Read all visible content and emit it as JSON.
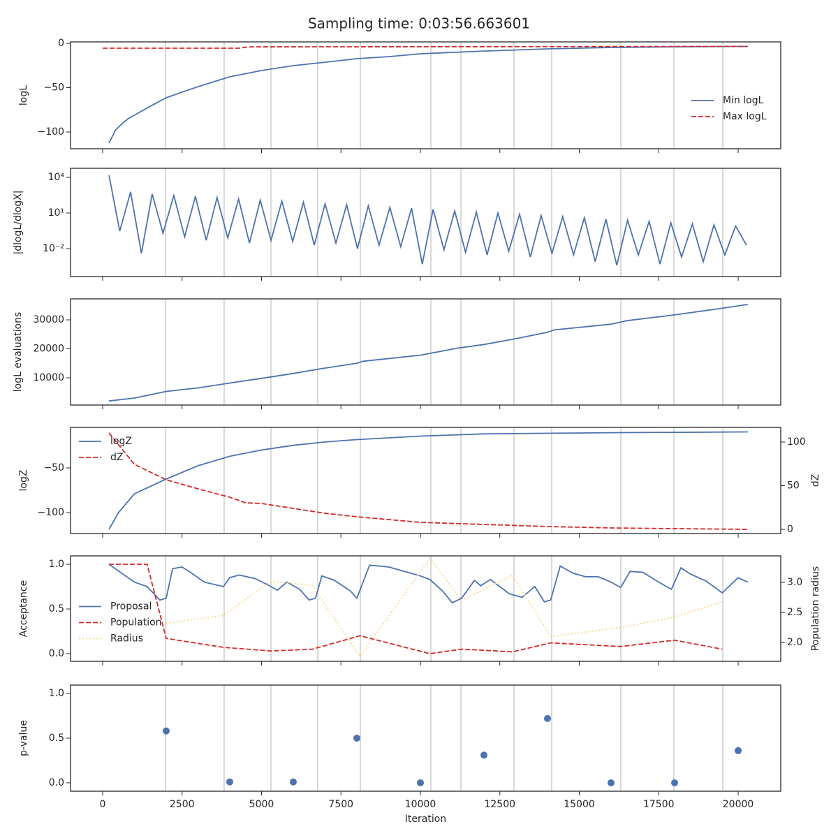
{
  "title": "Sampling time: 0:03:56.663601",
  "x_axis": {
    "label": "Iteration",
    "xlim": [
      -1010,
      21340
    ],
    "xticks": [
      0,
      2500,
      5000,
      7500,
      10000,
      12500,
      15000,
      17500,
      20000
    ],
    "vlines": [
      1978,
      3824,
      5297,
      6769,
      8110,
      10330,
      11275,
      12945,
      14132,
      16308,
      17978,
      19516
    ]
  },
  "chart_data": [
    {
      "type": "line",
      "ylabel": "logL",
      "ylim": [
        -118.9,
        1.6
      ],
      "yticks": [
        {
          "value": -100,
          "label": "−100"
        },
        {
          "value": -50,
          "label": "−50"
        },
        0
      ],
      "legend": "lower right",
      "series": [
        {
          "name": "Min logL",
          "color": "#4c72b0",
          "linestyle": "solid",
          "x": [
            200,
            400,
            600,
            800,
            1000,
            1500,
            2000,
            2500,
            3000,
            3500,
            4000,
            5000,
            6000,
            7000,
            8000,
            9000,
            10000,
            12000,
            14000,
            16000,
            18000,
            20300
          ],
          "values": [
            -112.6,
            -98,
            -91,
            -85,
            -81,
            -71,
            -61.4,
            -55,
            -49,
            -43.3,
            -37.8,
            -30.7,
            -25.2,
            -21.3,
            -17.3,
            -15,
            -11.8,
            -8.7,
            -6.3,
            -4.7,
            -3.9,
            -3.5
          ]
        },
        {
          "name": "Max logL",
          "color": "#d62728",
          "linestyle": "dashed",
          "x": [
            0,
            4300,
            4600,
            20300
          ],
          "values": [
            -5.5,
            -5.5,
            -4,
            -3.5
          ]
        }
      ]
    },
    {
      "type": "line",
      "ylabel": "|dlogL/dlogX|",
      "yscale": "log",
      "ylim": [
        4.5e-05,
        58000
      ],
      "yticks": [
        {
          "value": 0.01,
          "label": "10⁻²"
        },
        {
          "value": 10,
          "label": "10¹"
        },
        {
          "value": 10000,
          "label": "10⁴"
        }
      ],
      "series": [
        {
          "color": "#4c72b0",
          "linestyle": "solid",
          "x": [
            200,
            540,
            880,
            1220,
            1560,
            1900,
            2240,
            2580,
            2920,
            3260,
            3600,
            3940,
            4280,
            4620,
            4960,
            5300,
            5640,
            5980,
            6320,
            6660,
            7000,
            7340,
            7680,
            8020,
            8360,
            8700,
            9040,
            9380,
            9720,
            10060,
            10400,
            10740,
            11080,
            11420,
            11760,
            12100,
            12440,
            12780,
            13120,
            13460,
            13800,
            14140,
            14480,
            14820,
            15160,
            15500,
            15840,
            16180,
            16520,
            16860,
            17200,
            17540,
            17880,
            18220,
            18560,
            18900,
            19240,
            19580,
            19920,
            20260
          ],
          "values": [
            15000,
            0.3,
            600,
            0.004,
            400,
            0.2,
            300,
            0.1,
            250,
            0.05,
            200,
            0.08,
            150,
            0.03,
            120,
            0.05,
            100,
            0.04,
            80,
            0.02,
            60,
            0.03,
            50,
            0.01,
            40,
            0.02,
            30,
            0.015,
            25,
            0.0005,
            20,
            0.008,
            15,
            0.005,
            12,
            0.003,
            10,
            0.006,
            8,
            0.002,
            6,
            0.004,
            5,
            0.003,
            4,
            0.0008,
            3,
            0.0004,
            2.5,
            0.003,
            2,
            0.0005,
            1.5,
            0.002,
            1.2,
            0.0008,
            1,
            0.003,
            0.8,
            0.02
          ]
        }
      ]
    },
    {
      "type": "line",
      "ylabel": "logL evaluations",
      "ylim": [
        600,
        37230
      ],
      "yticks": [
        10000,
        20000,
        30000
      ],
      "series": [
        {
          "color": "#4c72b0",
          "linestyle": "solid",
          "x": [
            200,
            1000,
            2000,
            3000,
            4000,
            5000,
            6000,
            6800,
            8000,
            8200,
            10000,
            11200,
            12000,
            13000,
            14000,
            14200,
            16000,
            16500,
            18000,
            19500,
            20300
          ],
          "values": [
            2000,
            3000,
            5300,
            6500,
            8200,
            9800,
            11500,
            13000,
            15000,
            15700,
            17800,
            20300,
            21500,
            23500,
            25700,
            26500,
            28500,
            29700,
            31700,
            34000,
            35300
          ]
        }
      ]
    },
    {
      "type": "line",
      "ylabel": "logZ",
      "y2label": "dZ",
      "ylim": [
        -123.4,
        -4.7
      ],
      "yticks": [
        {
          "value": -100,
          "label": "−100"
        },
        {
          "value": -50,
          "label": "−50"
        }
      ],
      "y2lim": [
        -4.8,
        116.8
      ],
      "y2ticks": [
        0,
        50,
        100
      ],
      "legend": "upper left",
      "series": [
        {
          "name": "logZ",
          "color": "#4c72b0",
          "linestyle": "solid",
          "x": [
            200,
            500,
            1000,
            2000,
            3000,
            4000,
            5000,
            6000,
            7000,
            8000,
            10000,
            12000,
            16000,
            20300
          ],
          "values": [
            -118.7,
            -100,
            -79,
            -62.5,
            -47.6,
            -37,
            -30,
            -24.8,
            -21,
            -18.4,
            -14.5,
            -12,
            -10.6,
            -9.8
          ]
        },
        {
          "name": "dZ",
          "color": "#d62728",
          "linestyle": "dashed",
          "axis": "y2",
          "x": [
            200,
            1000,
            2000,
            3000,
            4000,
            4500,
            5000,
            6000,
            7000,
            8000,
            10000,
            12000,
            14000,
            16000,
            18000,
            20300
          ],
          "values": [
            110.4,
            74.4,
            56.8,
            46.4,
            36.8,
            30.4,
            29.6,
            24,
            18.4,
            14.4,
            8,
            5.6,
            3.2,
            1.6,
            0.8,
            0
          ]
        }
      ]
    },
    {
      "type": "line",
      "ylabel": "Acceptance",
      "y2label": "Population radius",
      "ylim": [
        -0.086,
        1.094
      ],
      "yticks": [
        {
          "value": 0,
          "label": "0.0"
        },
        0.5,
        {
          "value": 1,
          "label": "1.0"
        }
      ],
      "y2lim": [
        1.686,
        3.442
      ],
      "y2ticks": [
        {
          "value": 2,
          "label": "2.0"
        },
        2.5,
        {
          "value": 3,
          "label": "3.0"
        }
      ],
      "legend": "center left",
      "series": [
        {
          "name": "Proposal",
          "color": "#4c72b0",
          "linestyle": "solid",
          "x": [
            200,
            600,
            1000,
            1400,
            1800,
            2000,
            2200,
            2500,
            2800,
            3200,
            3800,
            4000,
            4300,
            4800,
            5200,
            5500,
            5800,
            6200,
            6500,
            6700,
            6900,
            7300,
            7800,
            8000,
            8400,
            9000,
            9500,
            10000,
            10300,
            10700,
            11000,
            11300,
            11700,
            11900,
            12200,
            12500,
            12800,
            13200,
            13600,
            13900,
            14100,
            14400,
            14800,
            15200,
            15600,
            16000,
            16300,
            16600,
            17000,
            17500,
            17900,
            18200,
            18500,
            19000,
            19500,
            20000,
            20300
          ],
          "values": [
            1.0,
            0.9,
            0.8,
            0.75,
            0.6,
            0.62,
            0.95,
            0.97,
            0.9,
            0.8,
            0.75,
            0.85,
            0.88,
            0.84,
            0.77,
            0.71,
            0.8,
            0.72,
            0.6,
            0.62,
            0.87,
            0.82,
            0.7,
            0.62,
            0.99,
            0.97,
            0.92,
            0.87,
            0.83,
            0.7,
            0.57,
            0.62,
            0.82,
            0.76,
            0.83,
            0.75,
            0.67,
            0.63,
            0.75,
            0.58,
            0.6,
            0.98,
            0.9,
            0.86,
            0.86,
            0.8,
            0.74,
            0.92,
            0.91,
            0.8,
            0.72,
            0.96,
            0.89,
            0.81,
            0.68,
            0.85,
            0.8
          ]
        },
        {
          "name": "Population",
          "color": "#d62728",
          "linestyle": "dashed",
          "x": [
            200,
            1400,
            2000,
            3800,
            5300,
            6600,
            8100,
            10300,
            11300,
            12900,
            14100,
            16300,
            18000,
            19500
          ],
          "values": [
            1.0,
            1.0,
            0.17,
            0.07,
            0.03,
            0.05,
            0.2,
            0.0,
            0.05,
            0.02,
            0.12,
            0.08,
            0.15,
            0.05
          ]
        },
        {
          "name": "Radius",
          "color": "#fdd58a",
          "linestyle": "dotted",
          "axis": "y2",
          "x": [
            2000,
            3800,
            5300,
            6600,
            8100,
            10300,
            11300,
            12900,
            14100,
            16300,
            18000,
            19500
          ],
          "values": [
            2.32,
            2.45,
            3.02,
            2.95,
            1.77,
            3.4,
            2.7,
            3.12,
            2.1,
            2.25,
            2.42,
            2.68
          ]
        }
      ]
    },
    {
      "type": "scatter",
      "ylabel": "p-value",
      "ylim": [
        -0.094,
        1.094
      ],
      "yticks": [
        {
          "value": 0,
          "label": "0.0"
        },
        0.5,
        {
          "value": 1,
          "label": "1.0"
        }
      ],
      "series": [
        {
          "color": "#4c72b0",
          "x": [
            2000,
            4000,
            6000,
            8000,
            10000,
            12000,
            14000,
            16000,
            18000,
            20000
          ],
          "values": [
            0.58,
            0.01,
            0.01,
            0.5,
            0.0,
            0.31,
            0.72,
            0.0,
            0.0,
            0.36
          ]
        }
      ]
    }
  ]
}
